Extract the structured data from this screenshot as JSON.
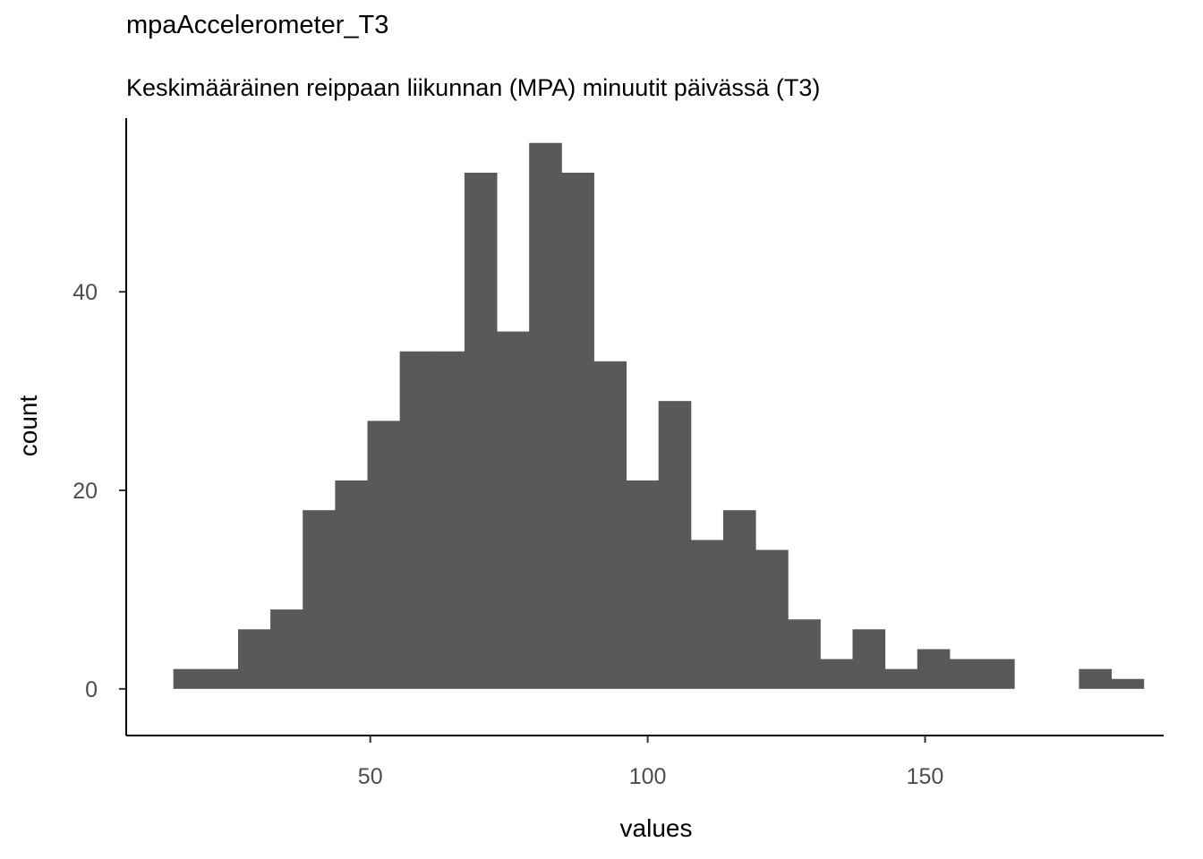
{
  "chart_data": {
    "type": "bar",
    "title": "mpaAccelerometer_T3",
    "subtitle": "Keskimääräinen reippaan liikunnan (MPA) minuutit päivässä (T3)",
    "xlabel": "values",
    "ylabel": "count",
    "bin_width": 5.83,
    "x_start": 14.5,
    "counts": [
      2,
      2,
      6,
      8,
      18,
      21,
      27,
      34,
      34,
      52,
      36,
      55,
      52,
      33,
      21,
      29,
      15,
      18,
      14,
      7,
      3,
      6,
      2,
      4,
      3,
      3,
      0,
      0,
      2,
      1
    ],
    "xlim": [
      6,
      193
    ],
    "ylim": [
      -4.7,
      57.5
    ],
    "xticks": [
      50,
      100,
      150
    ],
    "yticks": [
      0,
      20,
      40
    ],
    "bar_color": "#595959",
    "grid": false
  }
}
